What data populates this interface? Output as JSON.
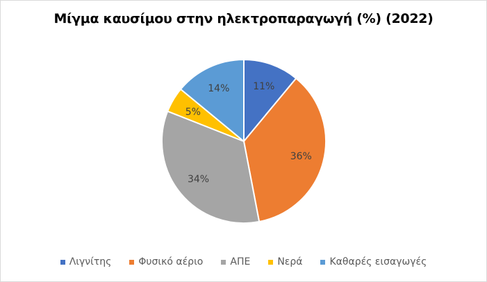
{
  "chart_data": {
    "type": "pie",
    "title": "Μίγμα καυσίμου στην ηλεκτροπαραγωγή (%) (2022)",
    "categories": [
      "Λιγνίτης",
      "Φυσικό αέριο",
      "ΑΠΕ",
      "Νερά",
      "Καθαρές εισαγωγές"
    ],
    "values": [
      11,
      36,
      34,
      5,
      14
    ],
    "labels": [
      "11%",
      "36%",
      "34%",
      "5%",
      "14%"
    ],
    "colors": [
      "#4472c4",
      "#ed7d31",
      "#a5a5a5",
      "#ffc000",
      "#5b9bd5"
    ],
    "legend_position": "bottom"
  }
}
